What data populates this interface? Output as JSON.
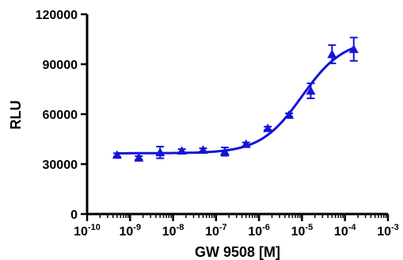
{
  "chart_data": {
    "type": "scatter",
    "title": "",
    "xlabel": "GW 9508 [M]",
    "ylabel": "RLU",
    "x_scale": "log",
    "xlim": [
      1e-10,
      0.001
    ],
    "ylim": [
      0,
      120000
    ],
    "grid": false,
    "legend": "none",
    "y_ticks": [
      0,
      30000,
      60000,
      90000,
      120000
    ],
    "y_tick_labels": [
      "0",
      "30000",
      "60000",
      "90000",
      "120000"
    ],
    "x_tick_labels": [
      {
        "base": "10",
        "exp": "-10"
      },
      {
        "base": "10",
        "exp": "-9"
      },
      {
        "base": "10",
        "exp": "-8"
      },
      {
        "base": "10",
        "exp": "-7"
      },
      {
        "base": "10",
        "exp": "-6"
      },
      {
        "base": "10",
        "exp": "-5"
      },
      {
        "base": "10",
        "exp": "-4"
      },
      {
        "base": "10",
        "exp": "-3"
      }
    ],
    "series": [
      {
        "color": "#1414d6",
        "marker": "triangle",
        "points": [
          {
            "x": 5e-10,
            "y": 35500,
            "err": 1000
          },
          {
            "x": 1.6e-09,
            "y": 33800,
            "err": 1000
          },
          {
            "x": 5e-09,
            "y": 37000,
            "err": 3500
          },
          {
            "x": 1.6e-08,
            "y": 38000,
            "err": 1000
          },
          {
            "x": 5e-08,
            "y": 38500,
            "err": 1000
          },
          {
            "x": 1.6e-07,
            "y": 37500,
            "err": 2500
          },
          {
            "x": 5e-07,
            "y": 42000,
            "err": 1000
          },
          {
            "x": 1.6e-06,
            "y": 51500,
            "err": 1000
          },
          {
            "x": 5e-06,
            "y": 59500,
            "err": 1000
          },
          {
            "x": 1.6e-05,
            "y": 74000,
            "err": 4500
          },
          {
            "x": 5e-05,
            "y": 96000,
            "err": 5500
          },
          {
            "x": 0.00016,
            "y": 99000,
            "err": 7000
          }
        ],
        "fit": {
          "bottom": 36500,
          "top": 105000,
          "log_ec50": -5.0,
          "hill": 0.9
        }
      }
    ]
  }
}
